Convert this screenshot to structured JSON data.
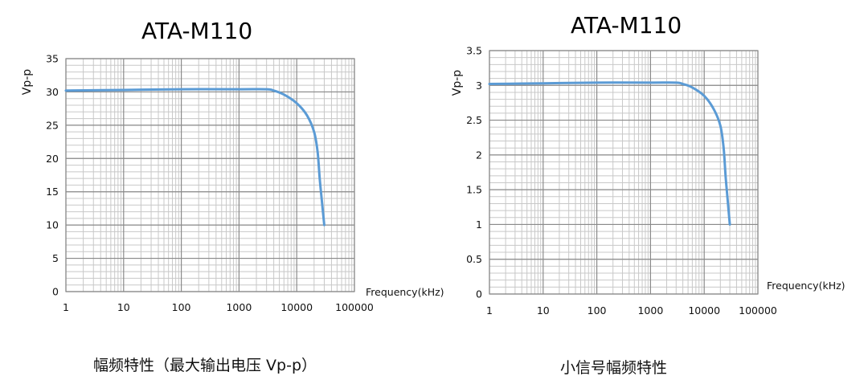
{
  "chart_data": [
    {
      "type": "line",
      "title": "ATA-M110",
      "caption": "幅频特性（最大输出电压 Vp-p）",
      "xlabel": "Frequency(kHz)",
      "ylabel": "Vp-p",
      "xscale": "log",
      "xlim": [
        1,
        100000
      ],
      "ylim": [
        0,
        35
      ],
      "xticks": [
        "1",
        "10",
        "100",
        "1000",
        "10000",
        "100000"
      ],
      "yticks": [
        "0",
        "5",
        "10",
        "15",
        "20",
        "25",
        "30",
        "35"
      ],
      "grid": true,
      "line_color": "#5B9BD5",
      "series": [
        {
          "name": "Vp-p",
          "x": [
            1,
            10,
            100,
            1000,
            3000,
            4000,
            6000,
            10000,
            15000,
            20000,
            23000,
            25000,
            27000,
            30000
          ],
          "y": [
            30.2,
            30.3,
            30.4,
            30.4,
            30.4,
            30.2,
            29.6,
            28.3,
            26.5,
            24.0,
            21.0,
            17.0,
            14.0,
            10.0
          ]
        }
      ]
    },
    {
      "type": "line",
      "title": "ATA-M110",
      "caption": "小信号幅频特性",
      "xlabel": "Frequency(kHz)",
      "ylabel": "Vp-p",
      "xscale": "log",
      "xlim": [
        1,
        100000
      ],
      "ylim": [
        0,
        3.5
      ],
      "xticks": [
        "1",
        "10",
        "100",
        "1000",
        "10000",
        "100000"
      ],
      "yticks": [
        "0",
        "0.5",
        "1",
        "1.5",
        "2",
        "2.5",
        "3",
        "3.5"
      ],
      "grid": true,
      "line_color": "#5B9BD5",
      "series": [
        {
          "name": "Vp-p",
          "x": [
            1,
            10,
            100,
            1000,
            3000,
            4000,
            6000,
            10000,
            15000,
            20000,
            23000,
            25000,
            27000,
            30000
          ],
          "y": [
            3.02,
            3.03,
            3.04,
            3.04,
            3.04,
            3.02,
            2.97,
            2.85,
            2.66,
            2.42,
            2.1,
            1.7,
            1.4,
            1.0
          ]
        }
      ]
    }
  ]
}
